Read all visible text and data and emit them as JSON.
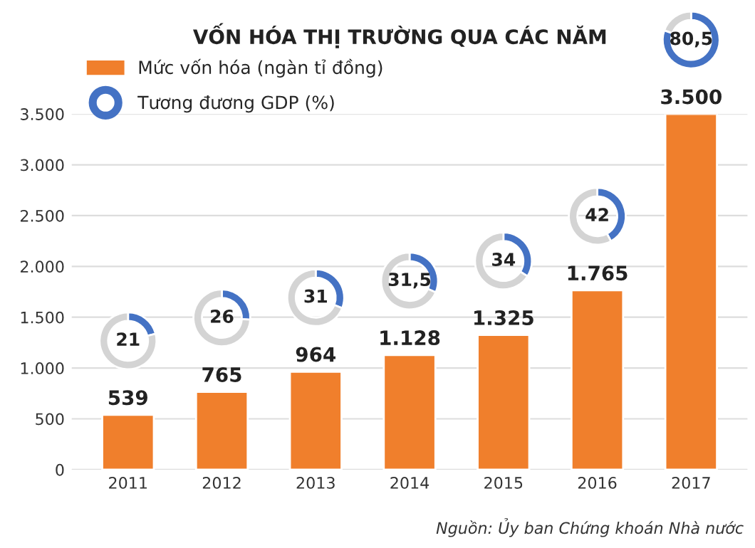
{
  "chart_data": [
    {
      "type": "bar",
      "title": "VỐN HÓA THỊ TRƯỜNG QUA CÁC NĂM",
      "categories": [
        "2011",
        "2012",
        "2013",
        "2014",
        "2015",
        "2016",
        "2017"
      ],
      "series": [
        {
          "name": "Mức vốn hóa (ngàn tỉ đồng)",
          "color": "#f07f2c",
          "values": [
            539,
            765,
            964,
            1128,
            1325,
            1765,
            3500
          ],
          "value_labels": [
            "539",
            "765",
            "964",
            "1.128",
            "1.325",
            "1.765",
            "3.500"
          ]
        }
      ],
      "ylim": [
        0,
        3500
      ],
      "yticks": [
        0,
        500,
        {
          "value": 1000,
          "label": "1.000"
        },
        {
          "value": 1500,
          "label": "1.500"
        },
        {
          "value": 2000,
          "label": "2.000"
        },
        {
          "value": 2500,
          "label": "2.500"
        },
        {
          "value": 3000,
          "label": "3.000"
        },
        {
          "value": 3500,
          "label": "3.500"
        }
      ],
      "grid": "y",
      "legend": "top left",
      "annotations": [
        "Nguồn: Ủy ban Chứng khoán Nhà nước"
      ]
    },
    {
      "type": "donut",
      "categories": [
        "Tương đương GDP (%)",
        null
      ],
      "values": [
        21,
        79
      ],
      "colors": [
        "#4472c4",
        "#d4d4d4"
      ],
      "value_labels": [
        "21",
        null
      ]
    },
    {
      "type": "donut",
      "categories": [
        null,
        null
      ],
      "values": [
        26,
        74
      ],
      "colors": [
        "#4472c4",
        "#d4d4d4"
      ],
      "value_labels": [
        "26",
        null
      ]
    },
    {
      "type": "donut",
      "categories": [
        null,
        null
      ],
      "values": [
        31,
        69
      ],
      "colors": [
        "#4472c4",
        "#d4d4d4"
      ],
      "value_labels": [
        "31",
        null
      ]
    },
    {
      "type": "donut",
      "categories": [
        null,
        null
      ],
      "values": [
        31.5,
        68.5
      ],
      "colors": [
        "#4472c4",
        "#d4d4d4"
      ],
      "value_labels": [
        "31,5",
        null
      ]
    },
    {
      "type": "donut",
      "categories": [
        null,
        null
      ],
      "values": [
        34,
        66
      ],
      "colors": [
        "#4472c4",
        "#d4d4d4"
      ],
      "value_labels": [
        "34",
        null
      ]
    },
    {
      "type": "donut",
      "categories": [
        null,
        null
      ],
      "values": [
        42,
        58
      ],
      "colors": [
        "#4472c4",
        "#d4d4d4"
      ],
      "value_labels": [
        "42",
        null
      ]
    },
    {
      "type": "donut",
      "categories": [
        null,
        null
      ],
      "values": [
        80.5,
        19.5
      ],
      "colors": [
        "#4472c4",
        "#d4d4d4"
      ],
      "value_labels": [
        "80,5",
        null
      ]
    }
  ]
}
